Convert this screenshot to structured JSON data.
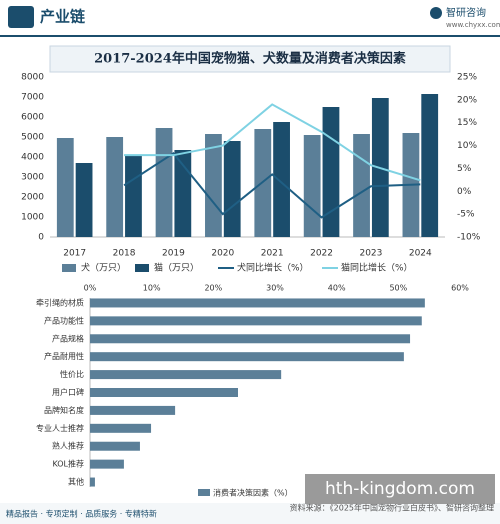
{
  "header": {
    "section": "产业链",
    "brand": "智研咨询",
    "url": "www.chyxx.com",
    "title": "2017-2024年中国宠物猫、犬数量及消费者决策因素"
  },
  "chart_data": [
    {
      "type": "bar",
      "categories": [
        "2017",
        "2018",
        "2019",
        "2020",
        "2021",
        "2022",
        "2023",
        "2024"
      ],
      "series": [
        {
          "name": "犬（万只）",
          "type": "bar",
          "color": "#5b7f98",
          "values": [
            4950,
            5000,
            5450,
            5150,
            5400,
            5100,
            5150,
            5200
          ]
        },
        {
          "name": "猫（万只）",
          "type": "bar",
          "color": "#1b4d6c",
          "values": [
            3700,
            4050,
            4350,
            4800,
            5750,
            6500,
            6950,
            7150
          ]
        },
        {
          "name": "犬同比增长（%）",
          "type": "line",
          "axis": "y2",
          "color": "#1f5f84",
          "values": [
            null,
            1.3,
            8.3,
            -5,
            3.7,
            -5.7,
            1.1,
            1.5
          ]
        },
        {
          "name": "猫同比增长（%）",
          "type": "line",
          "axis": "y2",
          "color": "#7fd2e3",
          "values": [
            null,
            7.9,
            7.9,
            10,
            19,
            13,
            5.7,
            2.4
          ]
        }
      ],
      "ylim": [
        0,
        8000
      ],
      "yticks": [
        0,
        1000,
        2000,
        3000,
        4000,
        5000,
        6000,
        7000,
        8000
      ],
      "y2lim": [
        -10,
        25
      ],
      "y2ticks": [
        {
          "value": -10,
          "label": "-10%"
        },
        {
          "value": -5,
          "label": "-5%"
        },
        {
          "value": 0,
          "label": "0%"
        },
        {
          "value": 5,
          "label": "5%"
        },
        {
          "value": 10,
          "label": "10%"
        },
        {
          "value": 15,
          "label": "15%"
        },
        {
          "value": 20,
          "label": "20%"
        },
        {
          "value": 25,
          "label": "25%"
        }
      ],
      "grid": false
    },
    {
      "type": "bar",
      "orientation": "horizontal",
      "categories": [
        "牵引绳的材质",
        "产品功能性",
        "产品规格",
        "产品耐用性",
        "性价比",
        "用户口碑",
        "品牌知名度",
        "专业人士推荐",
        "熟人推荐",
        "KOL推荐",
        "其他"
      ],
      "series": [
        {
          "name": "消费者决策因素（%）",
          "color": "#5b7f98",
          "values": [
            54.3,
            53.8,
            51.9,
            50.9,
            31,
            24,
            13.8,
            9.9,
            8.1,
            5.5,
            0.8
          ]
        }
      ],
      "xlim": [
        0,
        60
      ],
      "xticks": [
        {
          "value": 0,
          "label": "0%"
        },
        {
          "value": 10,
          "label": "10%"
        },
        {
          "value": 20,
          "label": "20%"
        },
        {
          "value": 30,
          "label": "30%"
        },
        {
          "value": 40,
          "label": "40%"
        },
        {
          "value": 50,
          "label": "50%"
        },
        {
          "value": 60,
          "label": "60%"
        }
      ],
      "grid": false
    }
  ],
  "footer": {
    "services": "精品报告 · 专项定制 · 品质服务 · 专精特新",
    "source": "资料来源：《2025年中国宠物行业白皮书》、智研咨询整理"
  },
  "overlay_text": "hth-kingdom.com"
}
